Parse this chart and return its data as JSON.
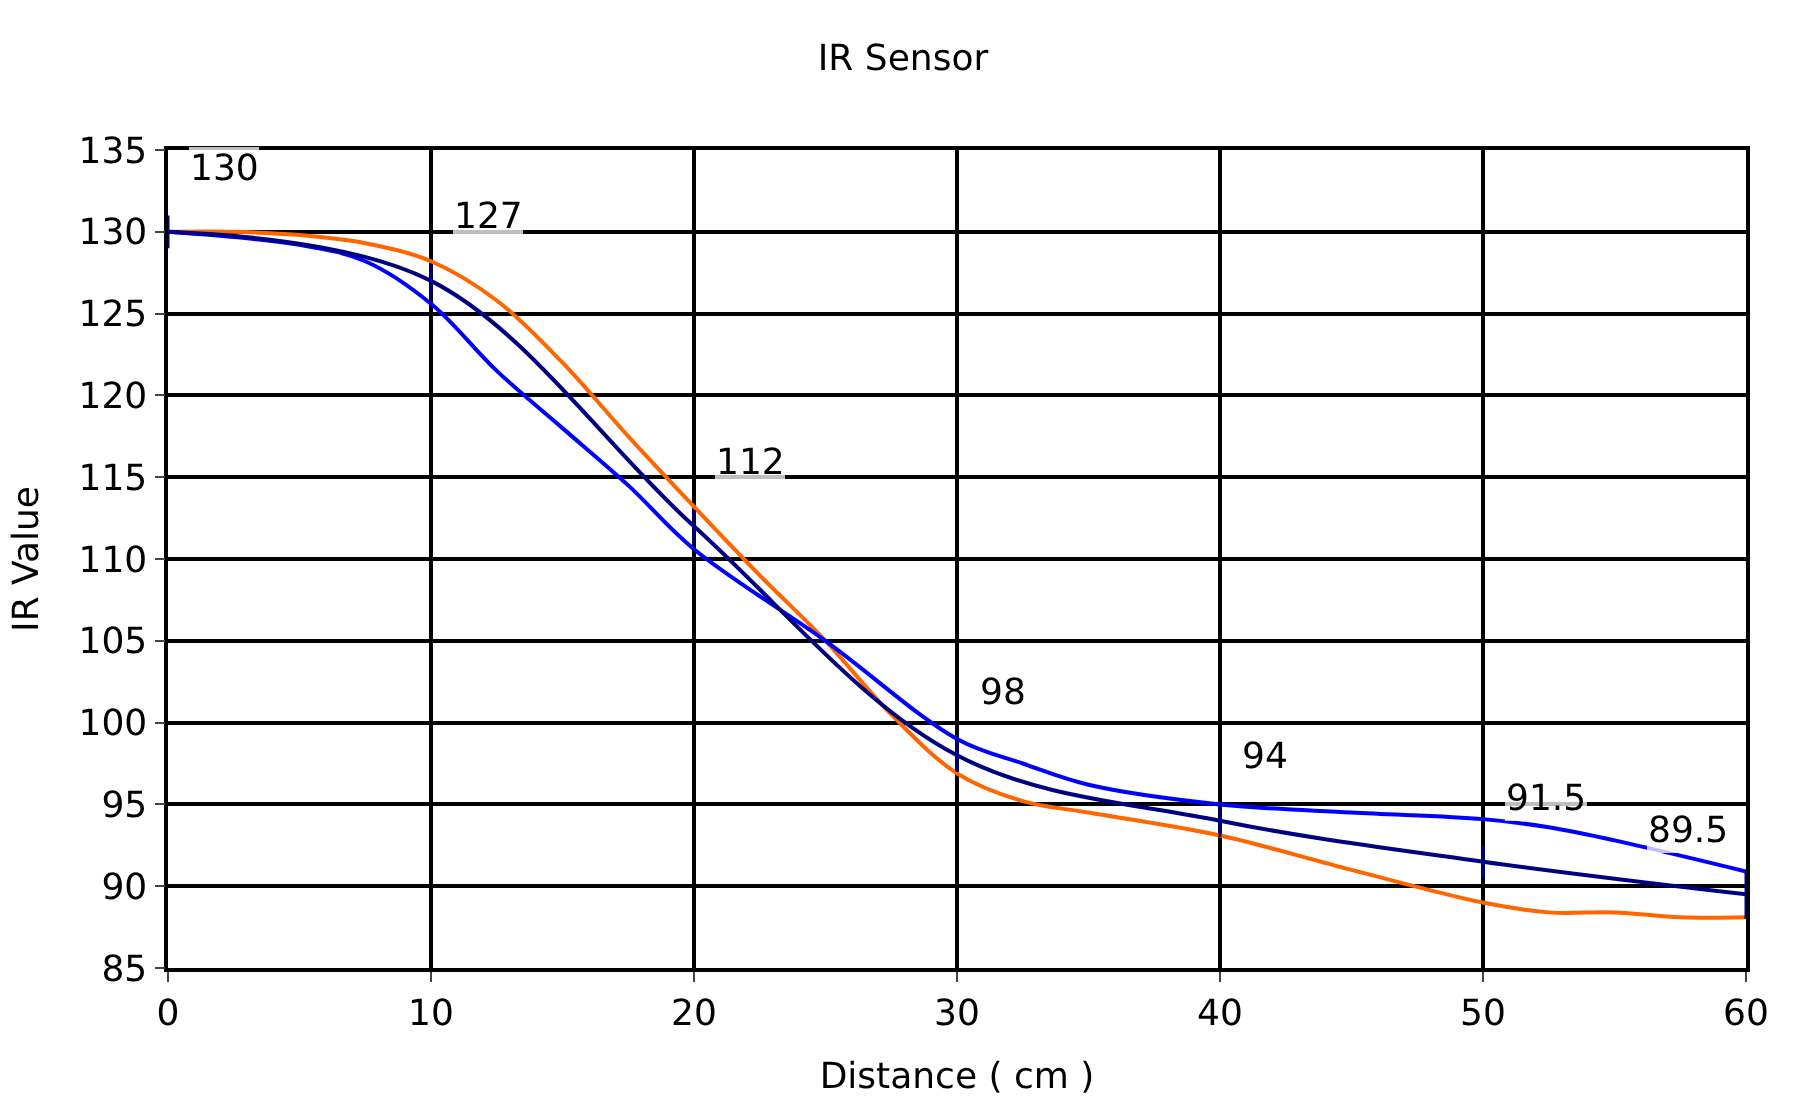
{
  "chart_data": {
    "type": "line",
    "title": "IR Sensor",
    "xlabel": "Distance ( cm )",
    "ylabel": "IR Value",
    "xlim": [
      0,
      60
    ],
    "xticks": [
      0,
      10,
      20,
      30,
      40,
      50,
      60
    ],
    "ylim": [
      85,
      135
    ],
    "yticks": [
      85,
      90,
      95,
      100,
      105,
      110,
      115,
      120,
      125,
      130,
      135
    ],
    "grid": true,
    "legend": false,
    "marker": "none",
    "line_style": "solid",
    "series": [
      {
        "color": "#ff6600",
        "x": [
          0,
          2.5,
          5,
          7.5,
          10,
          12.5,
          15,
          17.5,
          20,
          22.5,
          25,
          27.5,
          30,
          32.5,
          35,
          40,
          45,
          50,
          52.5,
          55,
          57.5,
          60
        ],
        "values": [
          130,
          130,
          129.8,
          129.3,
          128.2,
          125.8,
          122,
          117.5,
          113.2,
          109,
          105,
          100.5,
          96.9,
          95.2,
          94.5,
          93.1,
          91,
          89,
          88.4,
          88.4,
          88.1,
          88.1
        ]
      },
      {
        "color": "#0000ff",
        "x": [
          0,
          5,
          7.5,
          10,
          12.5,
          15,
          17.5,
          20,
          25,
          30,
          32.5,
          35,
          40,
          45,
          50,
          52.5,
          55,
          60
        ],
        "values": [
          130,
          129.2,
          128.2,
          125.6,
          121.5,
          118,
          114.5,
          110.6,
          105,
          99,
          97.5,
          96.2,
          95,
          94.5,
          94.1,
          93.6,
          92.8,
          90.9
        ]
      },
      {
        "color": "#000080",
        "x": [
          0,
          10,
          20,
          30,
          40,
          50,
          60
        ],
        "values": [
          130,
          127,
          112,
          98,
          94,
          91.5,
          89.5
        ],
        "data_labels": true,
        "errors": [
          1,
          1,
          1,
          1,
          1,
          1,
          1.5
        ]
      }
    ]
  }
}
